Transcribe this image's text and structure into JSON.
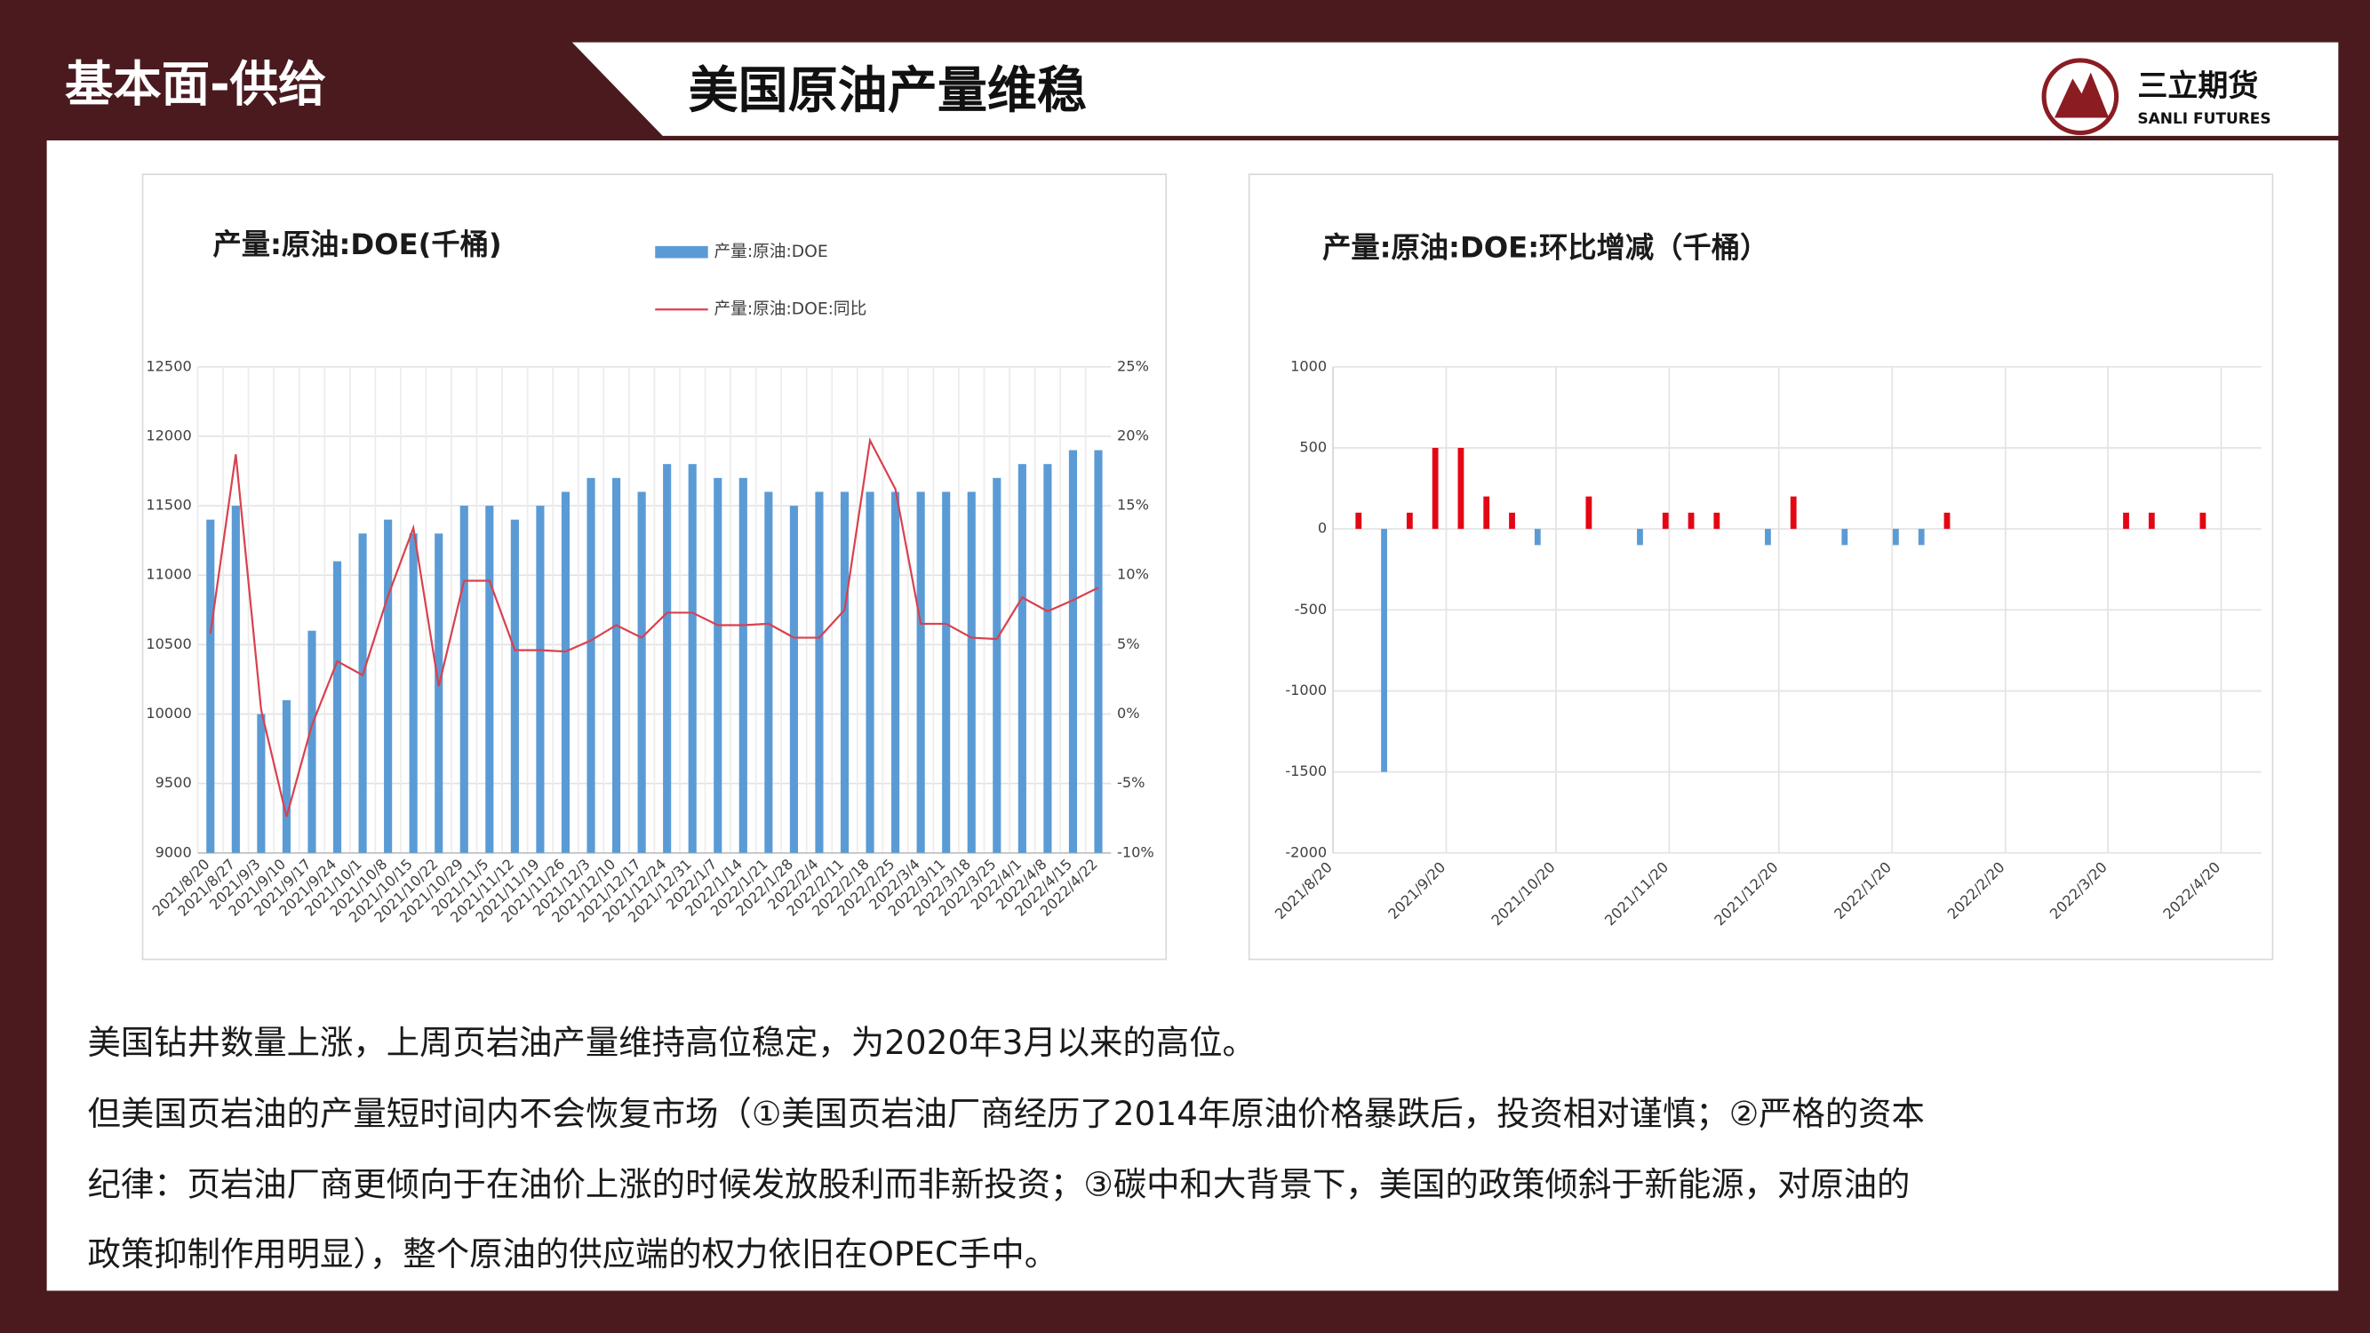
{
  "header": {
    "section": "基本面-供给",
    "title": "美国原油产量维稳",
    "logo_name": "三立期货",
    "logo_subtitle": "SANLI FUTURES"
  },
  "chart_data": [
    {
      "type": "bar",
      "title": "产量:原油:DOE(千桶)",
      "categories": [
        "2021/8/20",
        "2021/8/27",
        "2021/9/3",
        "2021/9/10",
        "2021/9/17",
        "2021/9/24",
        "2021/10/1",
        "2021/10/8",
        "2021/10/15",
        "2021/10/22",
        "2021/10/29",
        "2021/11/5",
        "2021/11/12",
        "2021/11/19",
        "2021/11/26",
        "2021/12/3",
        "2021/12/10",
        "2021/12/17",
        "2021/12/24",
        "2021/12/31",
        "2022/1/7",
        "2022/1/14",
        "2022/1/21",
        "2022/1/28",
        "2022/2/4",
        "2022/2/11",
        "2022/2/18",
        "2022/2/25",
        "2022/3/4",
        "2022/3/11",
        "2022/3/18",
        "2022/3/25",
        "2022/4/1",
        "2022/4/8",
        "2022/4/15",
        "2022/4/22"
      ],
      "series": [
        {
          "name": "产量:原油:DOE",
          "type": "bar",
          "color": "#5b9bd5",
          "values": [
            11400,
            11500,
            10000,
            10100,
            10600,
            11100,
            11300,
            11400,
            11300,
            11300,
            11500,
            11500,
            11400,
            11500,
            11600,
            11700,
            11700,
            11600,
            11800,
            11800,
            11700,
            11700,
            11600,
            11500,
            11600,
            11600,
            11600,
            11600,
            11600,
            11600,
            11600,
            11700,
            11800,
            11800,
            11900,
            11900
          ]
        },
        {
          "name": "产量:原油:DOE:同比",
          "type": "line",
          "axis": "y2",
          "color": "#d9414f",
          "values": [
            5.8,
            18.7,
            0.3,
            -7.4,
            -0.8,
            3.8,
            2.8,
            8.5,
            13.4,
            2.0,
            9.6,
            9.6,
            4.6,
            4.6,
            4.5,
            5.3,
            6.4,
            5.5,
            7.3,
            7.3,
            6.4,
            6.4,
            6.5,
            5.5,
            5.5,
            7.5,
            19.7,
            16.2,
            6.5,
            6.5,
            5.5,
            5.4,
            8.4,
            7.4,
            8.2,
            9.1
          ]
        }
      ],
      "ylim": [
        9000,
        12500
      ],
      "yticks": [
        9000,
        9500,
        10000,
        10500,
        11000,
        11500,
        12000,
        12500
      ],
      "y2lim": [
        -10,
        25
      ],
      "y2ticks": [
        {
          "value": -10,
          "label": "-10%"
        },
        {
          "value": -5,
          "label": "-5%"
        },
        {
          "value": 0,
          "label": "0%"
        },
        {
          "value": 5,
          "label": "5%"
        },
        {
          "value": 10,
          "label": "10%"
        },
        {
          "value": 15,
          "label": "15%"
        },
        {
          "value": 20,
          "label": "20%"
        },
        {
          "value": 25,
          "label": "25%"
        }
      ],
      "grid": true,
      "legend": "top"
    },
    {
      "type": "bar",
      "title": "产量:原油:DOE:环比增减（千桶）",
      "x": [
        "2021/8/27",
        "2021/9/3",
        "2021/9/10",
        "2021/9/17",
        "2021/9/24",
        "2021/10/1",
        "2021/10/8",
        "2021/10/15",
        "2021/10/22",
        "2021/10/29",
        "2021/11/5",
        "2021/11/12",
        "2021/11/19",
        "2021/11/26",
        "2021/12/3",
        "2021/12/10",
        "2021/12/17",
        "2021/12/24",
        "2021/12/31",
        "2022/1/7",
        "2022/1/14",
        "2022/1/21",
        "2022/1/28",
        "2022/2/4",
        "2022/2/11",
        "2022/2/18",
        "2022/2/25",
        "2022/3/4",
        "2022/3/11",
        "2022/3/18",
        "2022/3/25",
        "2022/4/1",
        "2022/4/8",
        "2022/4/15",
        "2022/4/22"
      ],
      "values": [
        100,
        -1500,
        100,
        500,
        500,
        200,
        100,
        -100,
        0,
        200,
        0,
        -100,
        100,
        100,
        100,
        0,
        -100,
        200,
        0,
        -100,
        0,
        -100,
        -100,
        100,
        0,
        0,
        0,
        0,
        0,
        0,
        100,
        100,
        0,
        100,
        0
      ],
      "positive_color": "#e30613",
      "negative_color": "#5b9bd5",
      "xlim": [
        "2021/8/20",
        "2022/5/1"
      ],
      "xticks": [
        "2021/8/20",
        "2021/9/20",
        "2021/10/20",
        "2021/11/20",
        "2021/12/20",
        "2022/1/20",
        "2022/2/20",
        "2022/3/20",
        "2022/4/20"
      ],
      "ylim": [
        -2000,
        1000
      ],
      "yticks": [
        -2000,
        -1500,
        -1000,
        -500,
        0,
        500,
        1000
      ],
      "grid": true
    }
  ],
  "body": {
    "lines": [
      "美国钻井数量上涨，上周页岩油产量维持高位稳定，为2020年3月以来的高位。",
      "但美国页岩油的产量短时间内不会恢复市场（①美国页岩油厂商经历了2014年原油价格暴跌后，投资相对谨慎；②严格的资本",
      "纪律：页岩油厂商更倾向于在油价上涨的时候发放股利而非新投资；③碳中和大背景下，美国的政策倾斜于新能源，对原油的",
      "政策抑制作用明显），整个原油的供应端的权力依旧在OPEC手中。"
    ]
  }
}
